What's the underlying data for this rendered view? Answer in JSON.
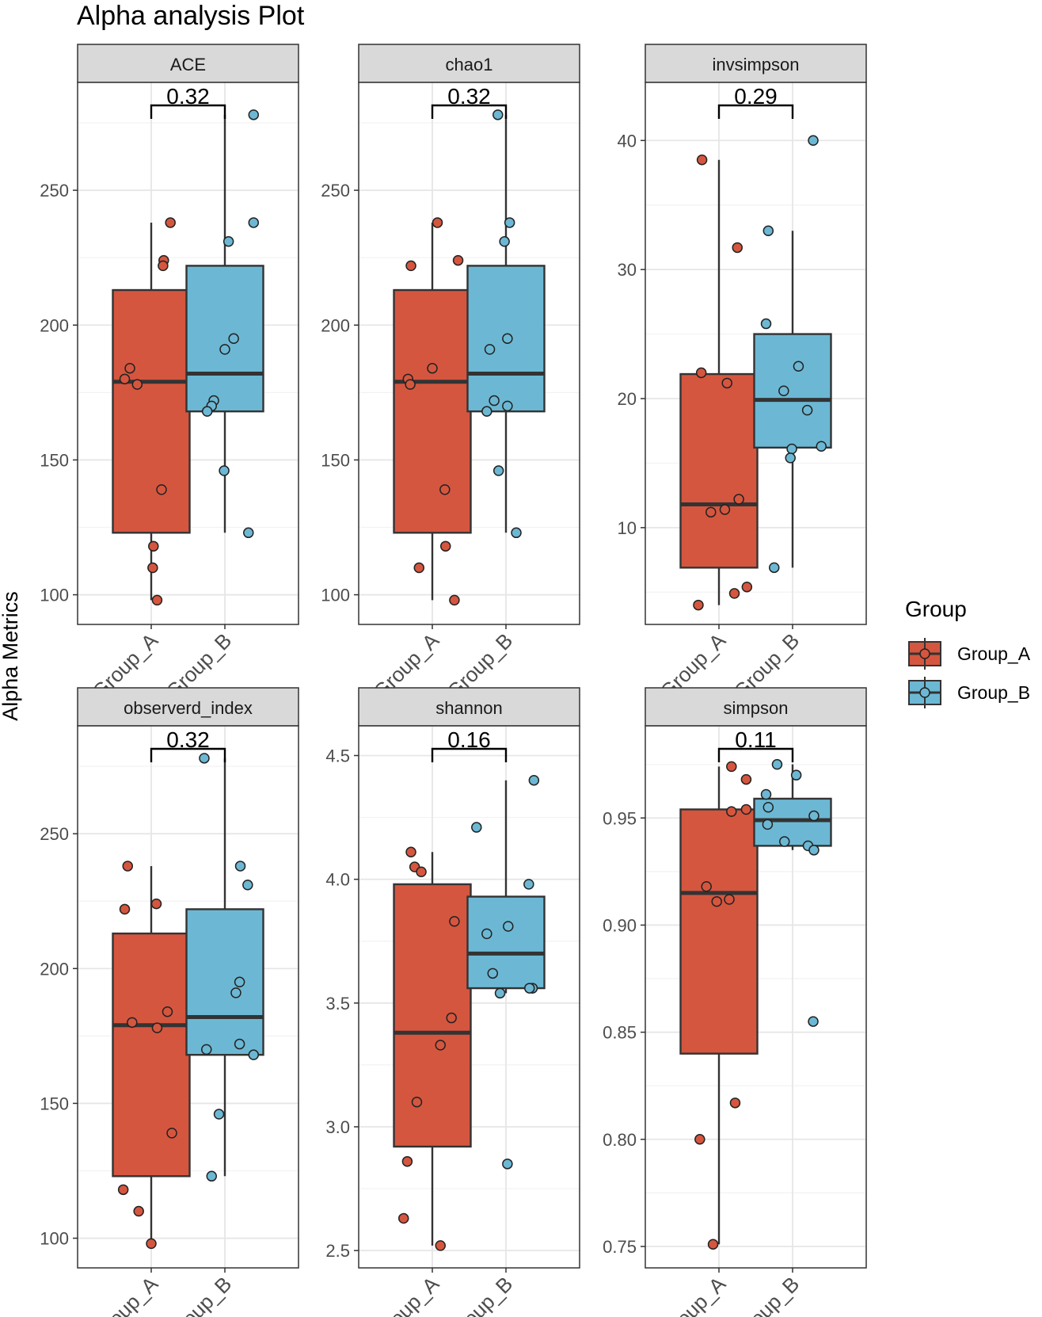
{
  "title": "Alpha analysis Plot",
  "ylabel": "Alpha Metrics",
  "legend": {
    "title": "Group",
    "items": [
      {
        "label": "Group_A",
        "color": "#D5563F"
      },
      {
        "label": "Group_B",
        "color": "#6CB8D4"
      }
    ]
  },
  "chart_data": [
    {
      "type": "box",
      "panel": "ACE",
      "categories": [
        "Group_A",
        "Group_B"
      ],
      "pvalue": "0.32",
      "ylim": [
        89,
        290
      ],
      "yticks": [
        100,
        150,
        200,
        250
      ],
      "boxes": [
        {
          "group": "Group_A",
          "q1": 123,
          "median": 179,
          "q3": 213,
          "whisker_low": 98,
          "whisker_high": 238
        },
        {
          "group": "Group_B",
          "q1": 168,
          "median": 182,
          "q3": 222,
          "whisker_low": 123,
          "whisker_high": 278
        }
      ],
      "points": [
        {
          "group": "Group_A",
          "values": [
            180,
            184,
            178,
            238,
            224,
            222,
            139,
            118,
            110,
            98
          ],
          "jitter": [
            -0.36,
            -0.29,
            -0.19,
            0.26,
            0.17,
            0.16,
            0.14,
            0.03,
            0.02,
            0.08
          ]
        },
        {
          "group": "Group_B",
          "values": [
            278,
            238,
            231,
            195,
            191,
            172,
            170,
            168,
            146,
            123
          ],
          "jitter": [
            0.39,
            0.39,
            0.05,
            0.12,
            0.0,
            -0.15,
            -0.18,
            -0.24,
            -0.01,
            0.32
          ]
        }
      ]
    },
    {
      "type": "box",
      "panel": "chao1",
      "categories": [
        "Group_A",
        "Group_B"
      ],
      "pvalue": "0.32",
      "ylim": [
        89,
        290
      ],
      "yticks": [
        100,
        150,
        200,
        250
      ],
      "boxes": [
        {
          "group": "Group_A",
          "q1": 123,
          "median": 179,
          "q3": 213,
          "whisker_low": 98,
          "whisker_high": 238
        },
        {
          "group": "Group_B",
          "q1": 168,
          "median": 182,
          "q3": 222,
          "whisker_low": 123,
          "whisker_high": 278
        }
      ],
      "points": [
        {
          "group": "Group_A",
          "values": [
            180,
            178,
            222,
            184,
            238,
            224,
            139,
            118,
            110,
            98
          ],
          "jitter": [
            -0.33,
            -0.3,
            -0.29,
            0.0,
            0.07,
            0.35,
            0.17,
            0.18,
            -0.18,
            0.3
          ]
        },
        {
          "group": "Group_B",
          "values": [
            278,
            238,
            231,
            195,
            191,
            172,
            170,
            168,
            146,
            123
          ],
          "jitter": [
            -0.11,
            0.05,
            -0.02,
            0.02,
            -0.22,
            -0.16,
            0.02,
            -0.26,
            -0.1,
            0.14
          ]
        }
      ]
    },
    {
      "type": "box",
      "panel": "invsimpson",
      "categories": [
        "Group_A",
        "Group_B"
      ],
      "pvalue": "0.29",
      "ylim": [
        2.5,
        44.5
      ],
      "yticks": [
        10,
        20,
        30,
        40
      ],
      "boxes": [
        {
          "group": "Group_A",
          "q1": 6.9,
          "median": 11.8,
          "q3": 21.9,
          "whisker_low": 4.0,
          "whisker_high": 38.5
        },
        {
          "group": "Group_B",
          "q1": 16.2,
          "median": 19.9,
          "q3": 25.0,
          "whisker_low": 6.9,
          "whisker_high": 33.0
        }
      ],
      "points": [
        {
          "group": "Group_A",
          "values": [
            38.5,
            31.7,
            22.0,
            21.2,
            12.2,
            11.4,
            11.2,
            5.4,
            4.9,
            4.0
          ],
          "jitter": [
            -0.23,
            0.25,
            -0.24,
            0.11,
            0.27,
            0.08,
            -0.11,
            0.38,
            0.21,
            -0.28
          ]
        },
        {
          "group": "Group_B",
          "values": [
            40.0,
            33.0,
            25.8,
            22.5,
            20.6,
            19.1,
            16.3,
            16.1,
            15.4,
            6.9
          ],
          "jitter": [
            0.28,
            -0.33,
            -0.36,
            0.08,
            -0.12,
            0.2,
            0.39,
            -0.01,
            -0.03,
            -0.25
          ]
        }
      ]
    },
    {
      "type": "box",
      "panel": "observerd_index",
      "categories": [
        "Group_A",
        "Group_B"
      ],
      "pvalue": "0.32",
      "ylim": [
        89,
        290
      ],
      "yticks": [
        100,
        150,
        200,
        250
      ],
      "boxes": [
        {
          "group": "Group_A",
          "q1": 123,
          "median": 179,
          "q3": 213,
          "whisker_low": 98,
          "whisker_high": 238
        },
        {
          "group": "Group_B",
          "q1": 168,
          "median": 182,
          "q3": 222,
          "whisker_low": 123,
          "whisker_high": 278
        }
      ],
      "points": [
        {
          "group": "Group_A",
          "values": [
            238,
            224,
            222,
            184,
            180,
            178,
            139,
            118,
            110,
            98
          ],
          "jitter": [
            -0.32,
            0.07,
            -0.36,
            0.22,
            -0.26,
            0.08,
            0.28,
            -0.38,
            -0.17,
            0.0
          ]
        },
        {
          "group": "Group_B",
          "values": [
            278,
            238,
            231,
            195,
            191,
            172,
            170,
            168,
            146,
            123
          ],
          "jitter": [
            -0.28,
            0.21,
            0.31,
            0.2,
            0.15,
            0.2,
            -0.25,
            0.39,
            -0.08,
            -0.18
          ]
        }
      ]
    },
    {
      "type": "box",
      "panel": "shannon",
      "categories": [
        "Group_A",
        "Group_B"
      ],
      "pvalue": "0.16",
      "ylim": [
        2.43,
        4.62
      ],
      "yticks": [
        2.5,
        3.0,
        3.5,
        4.0,
        4.5
      ],
      "boxes": [
        {
          "group": "Group_A",
          "q1": 2.92,
          "median": 3.38,
          "q3": 3.98,
          "whisker_low": 2.52,
          "whisker_high": 4.11
        },
        {
          "group": "Group_B",
          "q1": 3.56,
          "median": 3.7,
          "q3": 3.93,
          "whisker_low": 3.54,
          "whisker_high": 4.4
        }
      ],
      "points": [
        {
          "group": "Group_A",
          "values": [
            4.11,
            4.05,
            4.03,
            3.83,
            3.44,
            3.33,
            3.1,
            2.86,
            2.63,
            2.52
          ],
          "jitter": [
            -0.29,
            -0.24,
            -0.15,
            0.3,
            0.26,
            0.11,
            -0.21,
            -0.34,
            -0.39,
            0.11
          ]
        },
        {
          "group": "Group_B",
          "values": [
            4.4,
            4.21,
            3.98,
            3.81,
            3.78,
            3.62,
            3.56,
            3.56,
            3.54,
            2.85
          ],
          "jitter": [
            0.38,
            -0.4,
            0.31,
            0.03,
            -0.26,
            -0.18,
            0.36,
            0.32,
            -0.08,
            0.02
          ]
        }
      ]
    },
    {
      "type": "box",
      "panel": "simpson",
      "categories": [
        "Group_A",
        "Group_B"
      ],
      "pvalue": "0.11",
      "ylim": [
        0.74,
        0.993
      ],
      "yticks": [
        0.75,
        0.8,
        0.85,
        0.9,
        0.95
      ],
      "boxes": [
        {
          "group": "Group_A",
          "q1": 0.84,
          "median": 0.915,
          "q3": 0.954,
          "whisker_low": 0.751,
          "whisker_high": 0.974
        },
        {
          "group": "Group_B",
          "q1": 0.937,
          "median": 0.949,
          "q3": 0.959,
          "whisker_low": 0.935,
          "whisker_high": 0.975
        }
      ],
      "points": [
        {
          "group": "Group_A",
          "values": [
            0.974,
            0.968,
            0.954,
            0.953,
            0.918,
            0.912,
            0.911,
            0.817,
            0.8,
            0.751
          ],
          "jitter": [
            0.17,
            0.37,
            0.37,
            0.17,
            -0.17,
            0.14,
            -0.03,
            0.22,
            -0.26,
            -0.08
          ]
        },
        {
          "group": "Group_B",
          "values": [
            0.975,
            0.97,
            0.961,
            0.955,
            0.951,
            0.947,
            0.939,
            0.937,
            0.935,
            0.855
          ],
          "jitter": [
            -0.21,
            0.05,
            -0.36,
            -0.33,
            0.29,
            -0.34,
            -0.11,
            0.21,
            0.29,
            0.28
          ]
        }
      ]
    }
  ]
}
